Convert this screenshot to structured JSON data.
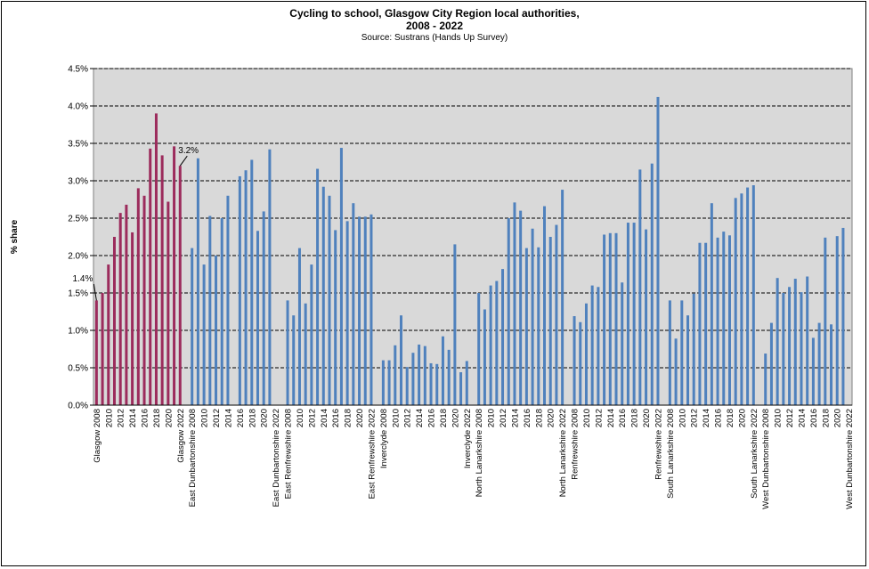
{
  "title_line1": "Cycling to school, Glasgow City Region local authorities,",
  "title_line2": "2008 - 2022",
  "subtitle": "Source: Sustrans (Hands Up Survey)",
  "colors": {
    "highlight": "#9c2b5c",
    "default": "#4f81bd",
    "plot_bg": "#d9d9d9"
  },
  "chart_data": {
    "type": "bar",
    "title": "Cycling to school, Glasgow City Region local authorities, 2008 - 2022",
    "subtitle": "Source: Sustrans (Hands Up Survey)",
    "ylabel": "% share",
    "xlabel": "",
    "ylim": [
      0,
      4.5
    ],
    "yticks": [
      "0.0%",
      "0.5%",
      "1.0%",
      "1.5%",
      "2.0%",
      "2.5%",
      "3.0%",
      "3.5%",
      "4.0%",
      "4.5%"
    ],
    "grid": true,
    "years": [
      2008,
      2009,
      2010,
      2011,
      2012,
      2013,
      2014,
      2015,
      2016,
      2017,
      2018,
      2019,
      2020,
      2021,
      2022
    ],
    "groups": [
      {
        "name": "Glasgow",
        "highlight": true,
        "values": [
          1.4,
          1.5,
          1.88,
          2.25,
          2.57,
          2.68,
          2.31,
          2.9,
          2.8,
          3.43,
          3.9,
          3.34,
          2.72,
          3.46,
          3.2
        ],
        "tick_labels": [
          "Glasgow 2008",
          "2010",
          "2012",
          "2014",
          "2016",
          "2018",
          "2020",
          "Glasgow 2022"
        ]
      },
      {
        "name": "East Dunbartonshire",
        "highlight": false,
        "values": [
          2.1,
          3.3,
          1.88,
          2.53,
          2.0,
          2.5,
          2.8,
          0,
          3.06,
          3.14,
          3.28,
          2.33,
          2.59,
          3.42,
          0
        ],
        "tick_labels": [
          "East Dunbartonshire 2008",
          "2010",
          "2012",
          "2014",
          "2016",
          "2018",
          "2020",
          "East Dunbartonshire 2022"
        ]
      },
      {
        "name": "East Renfrewshire",
        "highlight": false,
        "values": [
          1.4,
          1.2,
          2.1,
          1.36,
          1.88,
          3.16,
          2.92,
          2.8,
          2.34,
          3.44,
          2.46,
          2.7,
          2.52,
          2.52,
          2.55
        ],
        "tick_labels": [
          "East Renfrewshire 2008",
          "2010",
          "2012",
          "2014",
          "2016",
          "2018",
          "2020",
          "East Renfrewshire 2022"
        ]
      },
      {
        "name": "Inverclyde",
        "highlight": false,
        "values": [
          0.6,
          0.6,
          0.8,
          1.2,
          0.51,
          0.7,
          0.81,
          0.79,
          0.56,
          0.55,
          0.92,
          0.74,
          2.15,
          0.44,
          0.59
        ],
        "tick_labels": [
          "Inverclyde 2008",
          "2010",
          "2012",
          "2014",
          "2016",
          "2018",
          "2020",
          "Inverclyde 2022"
        ]
      },
      {
        "name": "North Lanarkshire",
        "highlight": false,
        "values": [
          1.5,
          1.28,
          1.6,
          1.66,
          1.82,
          2.5,
          2.71,
          2.6,
          2.1,
          2.36,
          2.11,
          2.66,
          2.25,
          2.41,
          2.88
        ],
        "tick_labels": [
          "North Lanarkshire 2008",
          "2010",
          "2012",
          "2014",
          "2016",
          "2018",
          "2020",
          "North Lanarkshire 2022"
        ]
      },
      {
        "name": "Renfrewshire",
        "highlight": false,
        "values": [
          1.19,
          1.11,
          1.36,
          1.6,
          1.58,
          2.28,
          2.3,
          2.3,
          1.64,
          2.44,
          2.44,
          3.15,
          2.35,
          3.23,
          4.12
        ],
        "tick_labels": [
          "Renfrewshire 2008",
          "2010",
          "2012",
          "2014",
          "2016",
          "2018",
          "2020",
          "Renfrewshire 2022"
        ]
      },
      {
        "name": "South Lanarkshire",
        "highlight": false,
        "values": [
          1.4,
          0.89,
          1.4,
          1.2,
          1.49,
          2.17,
          2.17,
          2.7,
          2.24,
          2.32,
          2.27,
          2.77,
          2.83,
          2.91,
          2.94
        ],
        "tick_labels": [
          "South Lanarkshire 2008",
          "2010",
          "2012",
          "2014",
          "2016",
          "2018",
          "2020",
          "South Lanarkshire 2022"
        ]
      },
      {
        "name": "West Dunbartonshire",
        "highlight": false,
        "values": [
          0.69,
          1.1,
          1.7,
          1.5,
          1.58,
          1.69,
          1.51,
          1.72,
          0.9,
          1.1,
          2.24,
          1.08,
          2.26,
          2.37,
          0
        ],
        "tick_labels": [
          "West Dunbartonshire 2008",
          "2010",
          "2012",
          "2014",
          "2016",
          "2018",
          "2020",
          "West Dunbartonshire 2022"
        ]
      }
    ],
    "annotations": [
      {
        "text": "1.4%",
        "group": "Glasgow",
        "year": 2008
      },
      {
        "text": "3.2%",
        "group": "Glasgow",
        "year": 2022
      }
    ]
  }
}
